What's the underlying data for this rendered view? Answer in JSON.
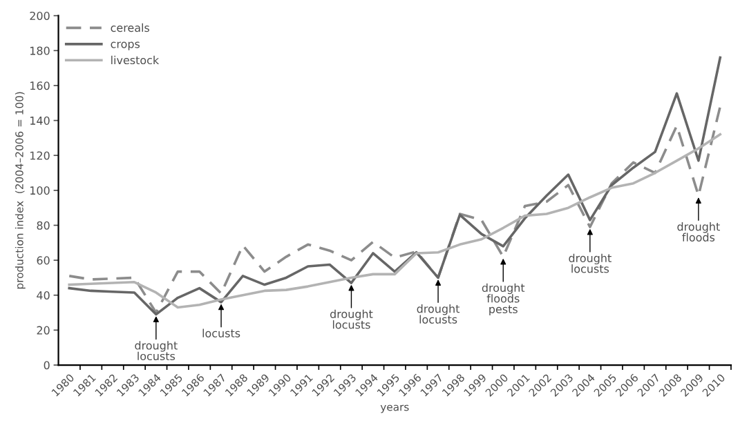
{
  "chart_data": {
    "type": "line",
    "xlabel": "years",
    "ylabel": "production index  (2004–2006 = 100)",
    "categories": [
      "1980",
      "1981",
      "1982",
      "1983",
      "1984",
      "1985",
      "1986",
      "1987",
      "1988",
      "1989",
      "1990",
      "1991",
      "1992",
      "1993",
      "1994",
      "1995",
      "1996",
      "1997",
      "1998",
      "1999",
      "2000",
      "2001",
      "2002",
      "2003",
      "2004",
      "2005",
      "2006",
      "2007",
      "2008",
      "2009",
      "2010"
    ],
    "series": [
      {
        "name": "cereals",
        "color": "#8c8c8c",
        "line_style": "dashed",
        "values": [
          51,
          49,
          49.5,
          50,
          30,
          53.5,
          53.5,
          41,
          68.5,
          53.5,
          62,
          69,
          65.5,
          60,
          70.5,
          61.5,
          65,
          50,
          86.5,
          83,
          62,
          91,
          93.5,
          103,
          79,
          104,
          116,
          110,
          137,
          97,
          148
        ]
      },
      {
        "name": "crops",
        "color": "#666666",
        "line_style": "solid",
        "values": [
          44,
          42.5,
          42,
          41.5,
          29,
          38.5,
          44,
          36,
          51,
          46,
          50,
          56.5,
          57.5,
          47,
          64,
          53.5,
          64.5,
          50,
          86,
          75,
          68,
          84,
          97,
          109,
          83,
          103,
          113,
          122,
          155.5,
          117,
          176
        ]
      },
      {
        "name": "livestock",
        "color": "#b3b3b3",
        "line_style": "solid",
        "values": [
          46,
          46.5,
          47,
          47.5,
          41.5,
          33,
          34.5,
          37.5,
          40,
          42.5,
          43,
          45,
          47.5,
          50,
          52,
          52,
          64,
          64.5,
          69,
          72,
          78.5,
          85.5,
          86.5,
          90,
          96,
          101.5,
          104,
          110,
          117,
          124,
          132
        ]
      }
    ],
    "annotations": [
      {
        "text": "drought\nlocusts",
        "x": "1984",
        "y": 28
      },
      {
        "text": "locusts",
        "x": "1987",
        "y": 35
      },
      {
        "text": "drought\nlocusts",
        "x": "1993",
        "y": 46
      },
      {
        "text": "drought\nlocusts",
        "x": "1997",
        "y": 49
      },
      {
        "text": "drought\nfloods\npests",
        "x": "2000",
        "y": 61
      },
      {
        "text": "drought\nlocusts",
        "x": "2004",
        "y": 78
      },
      {
        "text": "drought\nfloods",
        "x": "2009",
        "y": 96
      }
    ],
    "ylim": [
      0,
      200
    ],
    "yticks": [
      0,
      20,
      40,
      60,
      80,
      100,
      120,
      140,
      160,
      180,
      200
    ],
    "grid": false,
    "legend": "top left",
    "marker": "none"
  }
}
